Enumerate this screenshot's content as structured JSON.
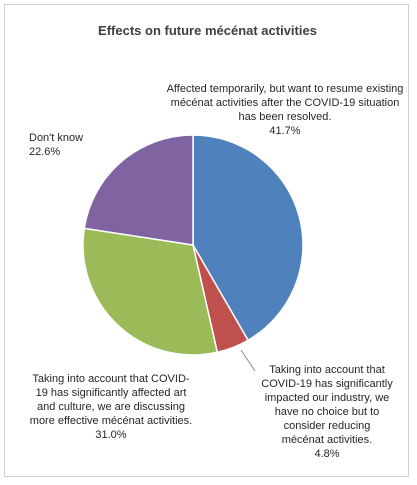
{
  "chart_data": {
    "type": "pie",
    "title": "Effects on future mécénat activities",
    "slices": [
      {
        "label": "Affected temporarily, but want to resume existing mécénat activities after the COVID-19 situation has been resolved.",
        "value": 41.7,
        "value_label": "41.7%",
        "color": "#4F81BD"
      },
      {
        "label": "Taking into account that COVID-19 has significantly impacted our industry, we have no choice but to consider reducing mécénat activities.",
        "value": 4.8,
        "value_label": "4.8%",
        "color": "#C0504D"
      },
      {
        "label": "Taking into account that COVID-19 has significantly affected art and culture, we are discussing more effective mécénat activities.",
        "value": 31.0,
        "value_label": "31.0%",
        "color": "#9BBB59"
      },
      {
        "label": "Don't know",
        "value": 22.6,
        "value_label": "22.6%",
        "color": "#8064A2"
      }
    ],
    "start_angle_deg": 0,
    "direction": "clockwise"
  }
}
